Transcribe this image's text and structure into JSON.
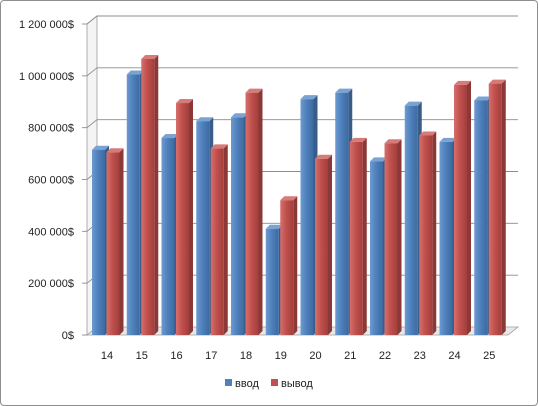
{
  "chart_data": {
    "type": "bar",
    "title": "",
    "xlabel": "",
    "ylabel": "",
    "categories": [
      "14",
      "15",
      "16",
      "17",
      "18",
      "19",
      "20",
      "21",
      "22",
      "23",
      "24",
      "25"
    ],
    "series": [
      {
        "name": "ввод",
        "color": "#4f81bd",
        "values": [
          715000,
          1005000,
          760000,
          825000,
          840000,
          410000,
          910000,
          935000,
          670000,
          885000,
          745000,
          905000
        ]
      },
      {
        "name": "вывод",
        "color": "#c0504d",
        "values": [
          705000,
          1065000,
          895000,
          720000,
          935000,
          520000,
          680000,
          745000,
          740000,
          770000,
          965000,
          970000
        ]
      }
    ],
    "ylim": [
      0,
      1200000
    ],
    "y_ticks": [
      {
        "value": 0,
        "label": "0$"
      },
      {
        "value": 200000,
        "label": "200 000$"
      },
      {
        "value": 400000,
        "label": "400 000$"
      },
      {
        "value": 600000,
        "label": "600 000$"
      },
      {
        "value": 800000,
        "label": "800 000$"
      },
      {
        "value": 1000000,
        "label": "1 000 000$"
      },
      {
        "value": 1200000,
        "label": "1 200 000$"
      }
    ],
    "grid": true,
    "legend_position": "bottom"
  }
}
